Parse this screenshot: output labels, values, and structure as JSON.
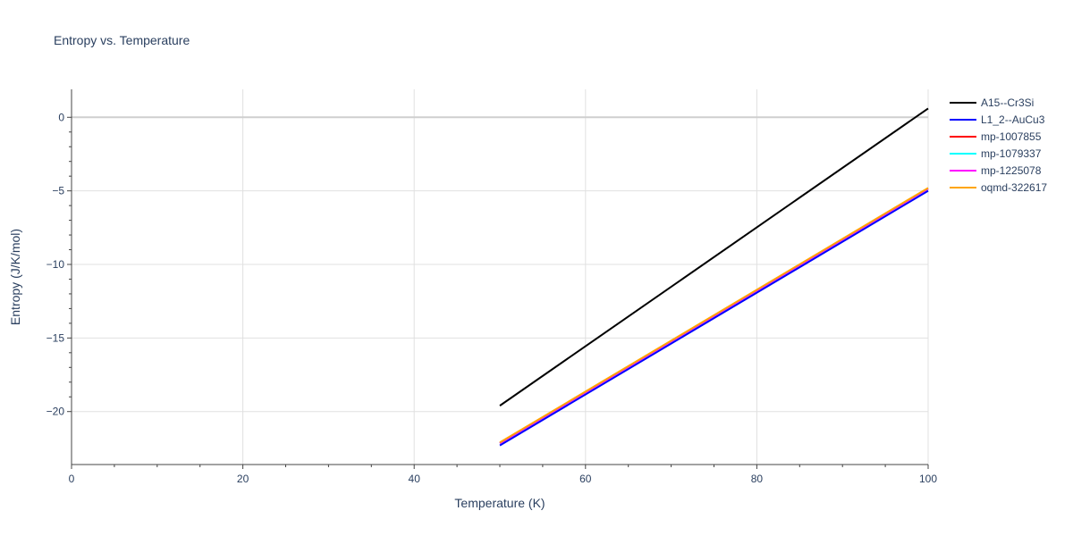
{
  "chart_data": {
    "type": "line",
    "title": "Entropy vs. Temperature",
    "xlabel": "Temperature (K)",
    "ylabel": "Entropy (J/K/mol)",
    "xlim": [
      0,
      100
    ],
    "ylim": [
      -23.6,
      1.9
    ],
    "x_ticks": [
      0,
      20,
      40,
      60,
      80,
      100
    ],
    "x_tick_labels": [
      "0",
      "20",
      "40",
      "60",
      "80",
      "100"
    ],
    "y_ticks": [
      0,
      -5,
      -10,
      -15,
      -20
    ],
    "y_tick_labels": [
      "0",
      "−5",
      "−10",
      "−15",
      "−20"
    ],
    "grid": true,
    "legend_position": "top-right outside",
    "series": [
      {
        "name": "A15--Cr3Si",
        "color": "#000000",
        "x": [
          50,
          100
        ],
        "y": [
          -19.6,
          0.6
        ]
      },
      {
        "name": "L1_2--AuCu3",
        "color": "#0000ff",
        "x": [
          50,
          100
        ],
        "y": [
          -22.3,
          -5.0
        ]
      },
      {
        "name": "mp-1007855",
        "color": "#ff0000",
        "x": [
          50,
          100
        ],
        "y": [
          -22.15,
          -4.85
        ]
      },
      {
        "name": "mp-1079337",
        "color": "#00ffff",
        "x": [
          50,
          100
        ],
        "y": [
          -22.15,
          -4.85
        ]
      },
      {
        "name": "mp-1225078",
        "color": "#ff00ff",
        "x": [
          50,
          100
        ],
        "y": [
          -22.15,
          -4.85
        ]
      },
      {
        "name": "oqmd-322617",
        "color": "#ffa500",
        "x": [
          50,
          100
        ],
        "y": [
          -22.1,
          -4.8
        ]
      }
    ]
  }
}
